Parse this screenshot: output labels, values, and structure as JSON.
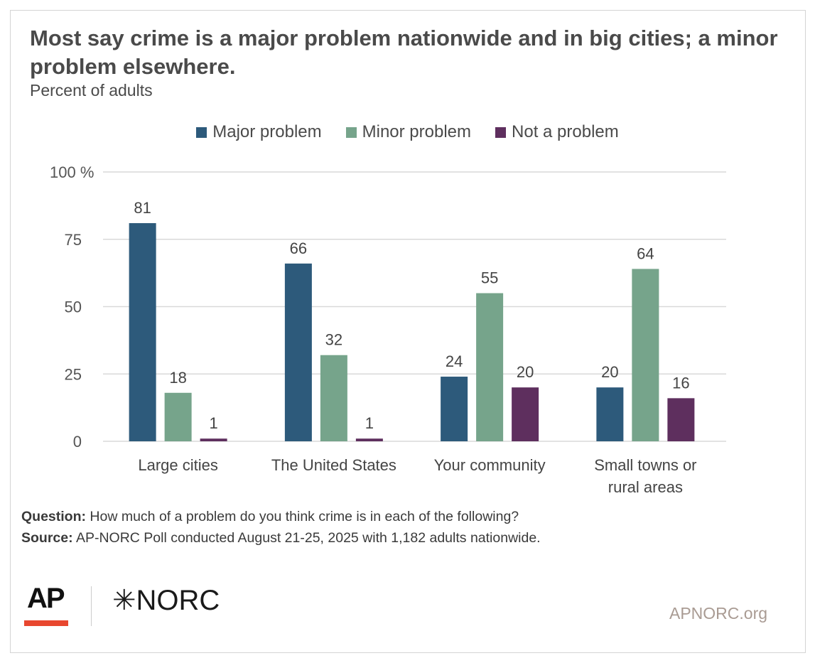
{
  "title": "Most say crime is a major problem nationwide and in big cities; a minor problem elsewhere.",
  "subtitle": "Percent of adults",
  "notes": {
    "question_label": "Question:",
    "question": " How much of a problem do you think crime is in each of the following?",
    "source_label": "Source:",
    "source": " AP-NORC Poll conducted August 21-25, 2025 with 1,182 adults nationwide."
  },
  "logos": {
    "ap": "AP",
    "norc": "NORC",
    "star": "✳"
  },
  "site": "APNORC.org",
  "chart_data": {
    "type": "bar",
    "title": "Most say crime is a major problem nationwide and in big cities; a minor problem elsewhere.",
    "ylabel": "Percent of adults",
    "ylim": [
      0,
      100
    ],
    "yticks": [
      0,
      25,
      50,
      75,
      100
    ],
    "ytick_labels": [
      "0",
      "25",
      "50",
      "75",
      "100 %"
    ],
    "grid": true,
    "legend_position": "top-center",
    "categories": [
      "Large cities",
      "The United States",
      "Your community",
      "Small towns or rural areas"
    ],
    "series": [
      {
        "name": "Major problem",
        "color": "#2d5a7b",
        "values": [
          81,
          66,
          24,
          20
        ]
      },
      {
        "name": "Minor problem",
        "color": "#76a48b",
        "values": [
          18,
          32,
          55,
          64
        ]
      },
      {
        "name": "Not a problem",
        "color": "#5e2f5e",
        "values": [
          1,
          1,
          20,
          16
        ]
      }
    ]
  }
}
